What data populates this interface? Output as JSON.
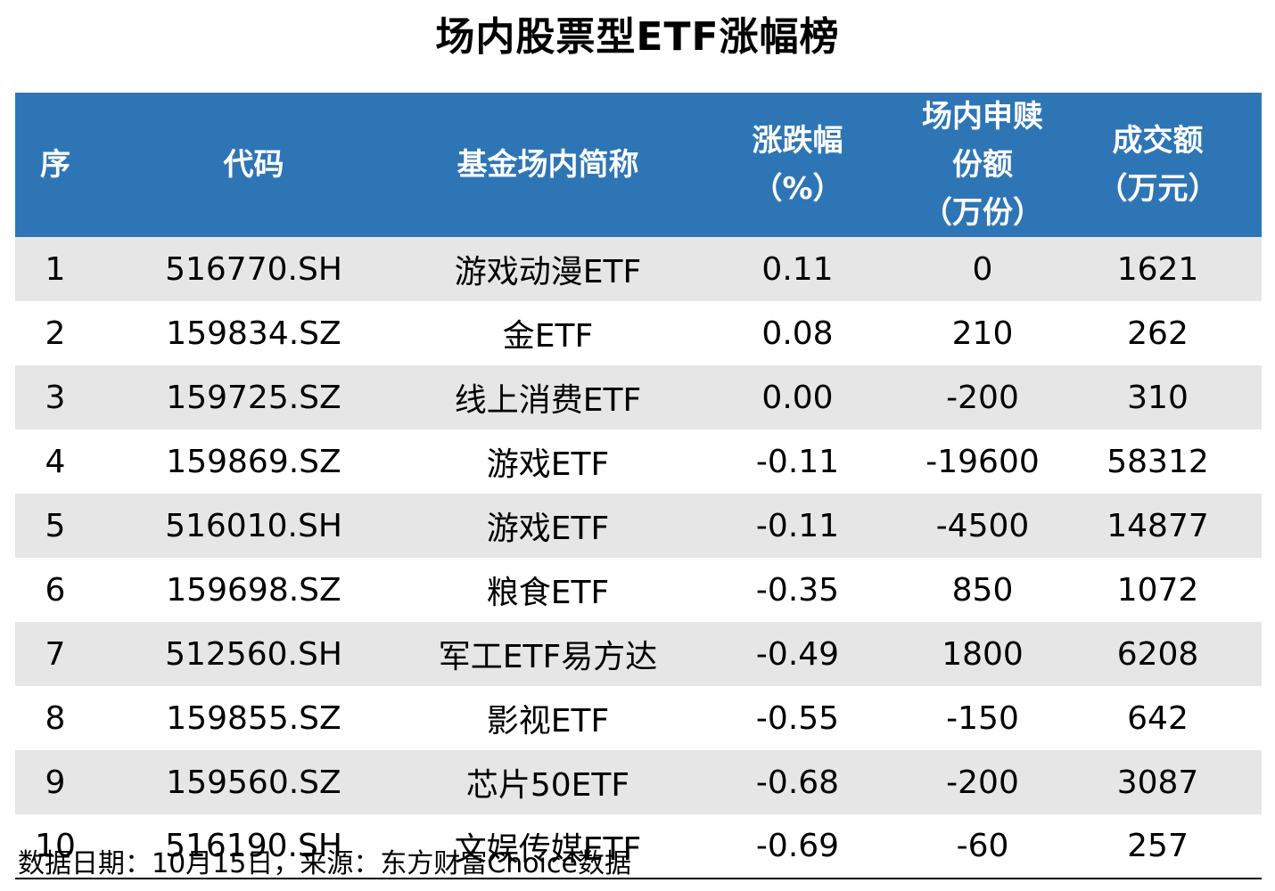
{
  "title": "场内股票型ETF涨幅榜",
  "table": {
    "headers": {
      "rank": "序",
      "code": "代码",
      "name": "基金场内简称",
      "change_line1": "涨跌幅",
      "change_line2": "（%）",
      "subscription_line1": "场内申赎份额",
      "subscription_line2": "（万份）",
      "volume_line1": "成交额",
      "volume_line2": "（万元）"
    },
    "rows": [
      {
        "rank": "1",
        "code": "516770.SH",
        "name": "游戏动漫ETF",
        "change": "0.11",
        "subscription": "0",
        "volume": "1621"
      },
      {
        "rank": "2",
        "code": "159834.SZ",
        "name": "金ETF",
        "change": "0.08",
        "subscription": "210",
        "volume": "262"
      },
      {
        "rank": "3",
        "code": "159725.SZ",
        "name": "线上消费ETF",
        "change": "0.00",
        "subscription": "-200",
        "volume": "310"
      },
      {
        "rank": "4",
        "code": "159869.SZ",
        "name": "游戏ETF",
        "change": "-0.11",
        "subscription": "-19600",
        "volume": "58312"
      },
      {
        "rank": "5",
        "code": "516010.SH",
        "name": "游戏ETF",
        "change": "-0.11",
        "subscription": "-4500",
        "volume": "14877"
      },
      {
        "rank": "6",
        "code": "159698.SZ",
        "name": "粮食ETF",
        "change": "-0.35",
        "subscription": "850",
        "volume": "1072"
      },
      {
        "rank": "7",
        "code": "512560.SH",
        "name": "军工ETF易方达",
        "change": "-0.49",
        "subscription": "1800",
        "volume": "6208"
      },
      {
        "rank": "8",
        "code": "159855.SZ",
        "name": "影视ETF",
        "change": "-0.55",
        "subscription": "-150",
        "volume": "642"
      },
      {
        "rank": "9",
        "code": "159560.SZ",
        "name": "芯片50ETF",
        "change": "-0.68",
        "subscription": "-200",
        "volume": "3087"
      },
      {
        "rank": "10",
        "code": "516190.SH",
        "name": "文娱传媒ETF",
        "change": "-0.69",
        "subscription": "-60",
        "volume": "257"
      }
    ]
  },
  "footer": "数据日期：10月15日，来源：东方财富Choice数据",
  "colors": {
    "header_background": "#2e75b6",
    "header_text": "#ffffff",
    "stripe_row": "#e6e6e6",
    "plain_row": "#ffffff"
  }
}
